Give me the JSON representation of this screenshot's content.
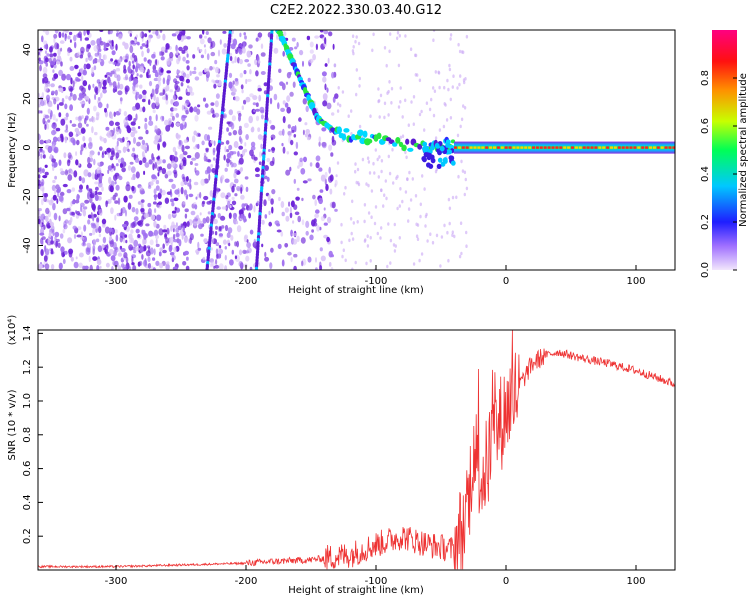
{
  "title": "C2E2.2022.330.03.40.G12",
  "colors": {
    "snr_line": "#ee3333",
    "track": "#6a1fd8",
    "speckle": "#7b2ff0",
    "colormap": [
      "#e8d0f8",
      "#9b59ff",
      "#2a2aff",
      "#00c8ff",
      "#00ff40",
      "#c8ff00",
      "#ff8000",
      "#ff0000",
      "#ff0080"
    ]
  },
  "chart_data": [
    {
      "type": "heatmap",
      "xlabel": "Height of straight line (km)",
      "ylabel": "Frequency (Hz)",
      "xlim": [
        -360,
        130
      ],
      "ylim": [
        -50,
        48
      ],
      "xticks": [
        -300,
        -200,
        -100,
        0,
        100
      ],
      "yticks": [
        -40,
        -20,
        0,
        20,
        40
      ],
      "colorbar": {
        "label": "Normalized spectral amplitude",
        "range": [
          0.0,
          1.0
        ],
        "ticks": [
          0.0,
          0.2,
          0.4,
          0.6,
          0.8
        ]
      },
      "features": {
        "carrier": {
          "freq": 0,
          "x_start": -40,
          "x_end": 130
        },
        "doppler_track": {
          "points": [
            [
              -175,
              48
            ],
            [
              -160,
              30
            ],
            [
              -145,
              12
            ],
            [
              -130,
              6
            ],
            [
              -100,
              3
            ],
            [
              -60,
              0
            ],
            [
              -40,
              2
            ]
          ]
        },
        "steep_line_1": {
          "points": [
            [
              -212,
              48
            ],
            [
              -230,
              -50
            ]
          ]
        },
        "steep_line_2": {
          "points": [
            [
              -180,
              48
            ],
            [
              -192,
              -50
            ]
          ]
        }
      }
    },
    {
      "type": "line",
      "xlabel": "Height of straight line (km)",
      "ylabel": "SNR (10 * v/v)",
      "yscale_note": "(x10⁴)",
      "xlim": [
        -360,
        130
      ],
      "ylim": [
        0,
        1.42
      ],
      "xticks": [
        -300,
        -200,
        -100,
        0,
        100
      ],
      "yticks": [
        0.2,
        0.4,
        0.6,
        0.8,
        1.0,
        1.2,
        1.4
      ],
      "series": [
        {
          "x": [
            -360,
            -300,
            -250,
            -200,
            -180,
            -150,
            -120,
            -100,
            -80,
            -60,
            -40,
            -30,
            -25,
            -20,
            -15,
            -10,
            -5,
            0,
            10,
            20,
            30,
            40,
            50,
            60,
            80,
            100,
            130
          ],
          "y": [
            0.02,
            0.02,
            0.03,
            0.04,
            0.05,
            0.06,
            0.09,
            0.15,
            0.2,
            0.15,
            0.12,
            0.3,
            0.75,
            0.55,
            0.6,
            0.8,
            0.85,
            0.95,
            1.08,
            1.22,
            1.27,
            1.29,
            1.27,
            1.25,
            1.22,
            1.18,
            1.1
          ]
        }
      ]
    }
  ]
}
